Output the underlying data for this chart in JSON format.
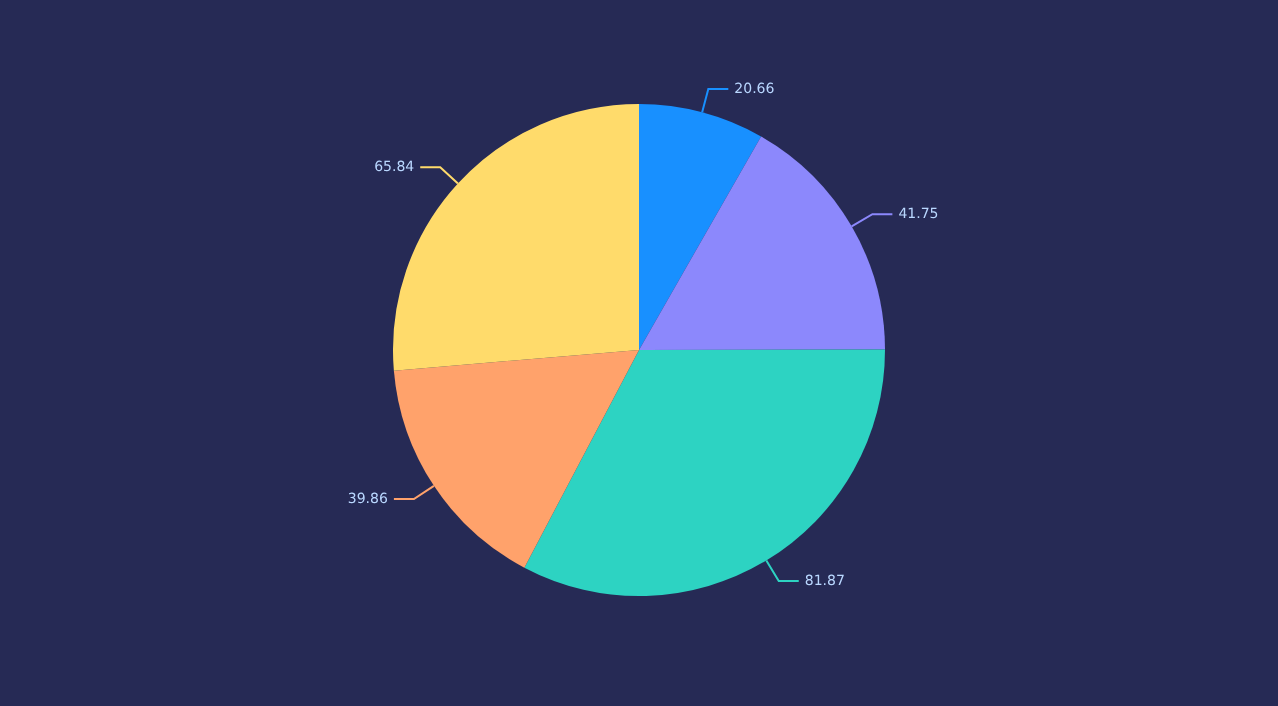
{
  "chart_data": {
    "type": "pie",
    "categories": [
      null,
      null,
      null,
      null,
      null
    ],
    "values": [
      20.66,
      41.75,
      81.87,
      39.86,
      65.84
    ],
    "colors": [
      "#1890ff",
      "#8c88fc",
      "#2dd3c2",
      "#ffa26b",
      "#ffdb6b"
    ],
    "data_labels": true,
    "legend": false
  }
}
